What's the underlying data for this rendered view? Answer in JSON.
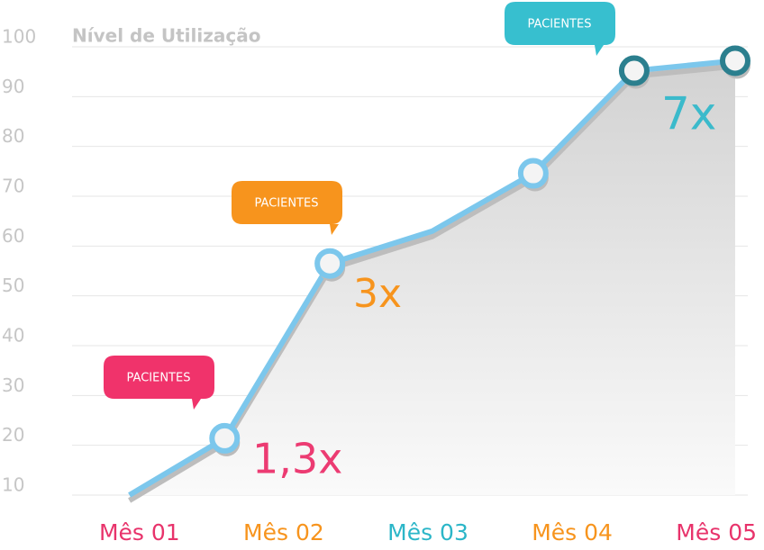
{
  "chart_data": {
    "type": "line",
    "y_title": "Nível de Utilização",
    "x": [
      0.93,
      1.59,
      2.32,
      3.03,
      3.73,
      4.43,
      5.13
    ],
    "values": [
      10,
      21.4,
      56.5,
      63,
      74.6,
      95.2,
      97.2
    ],
    "color": "#7cc7ec",
    "xlim": [
      0.72,
      5.28
    ],
    "xticks": [
      {
        "value": 1,
        "label": "Mês 01"
      },
      {
        "value": 2,
        "label": "Mês 02"
      },
      {
        "value": 3,
        "label": "Mês 03"
      },
      {
        "value": 4,
        "label": "Mês 04"
      },
      {
        "value": 5,
        "label": "Mês 05"
      }
    ],
    "xtick_colors": [
      "#e8336b",
      "#f7941d",
      "#2bb6c8",
      "#f7941d",
      "#e8336b"
    ],
    "ylim": [
      10,
      100
    ],
    "yticks": [
      10,
      20,
      30,
      40,
      50,
      60,
      70,
      80,
      90,
      100
    ],
    "grid": true,
    "callouts": [
      {
        "text": "PACIENTES",
        "color": "#f0336b"
      },
      {
        "text": "PACIENTES",
        "color": "#f7941d"
      },
      {
        "text": "PACIENTES",
        "color": "#37bfcf"
      }
    ],
    "multipliers": [
      {
        "text": "1,3x",
        "color": "#ec3b72"
      },
      {
        "text": "3x",
        "color": "#f7941d"
      },
      {
        "text": "7x",
        "color": "#3bbacb"
      }
    ]
  }
}
